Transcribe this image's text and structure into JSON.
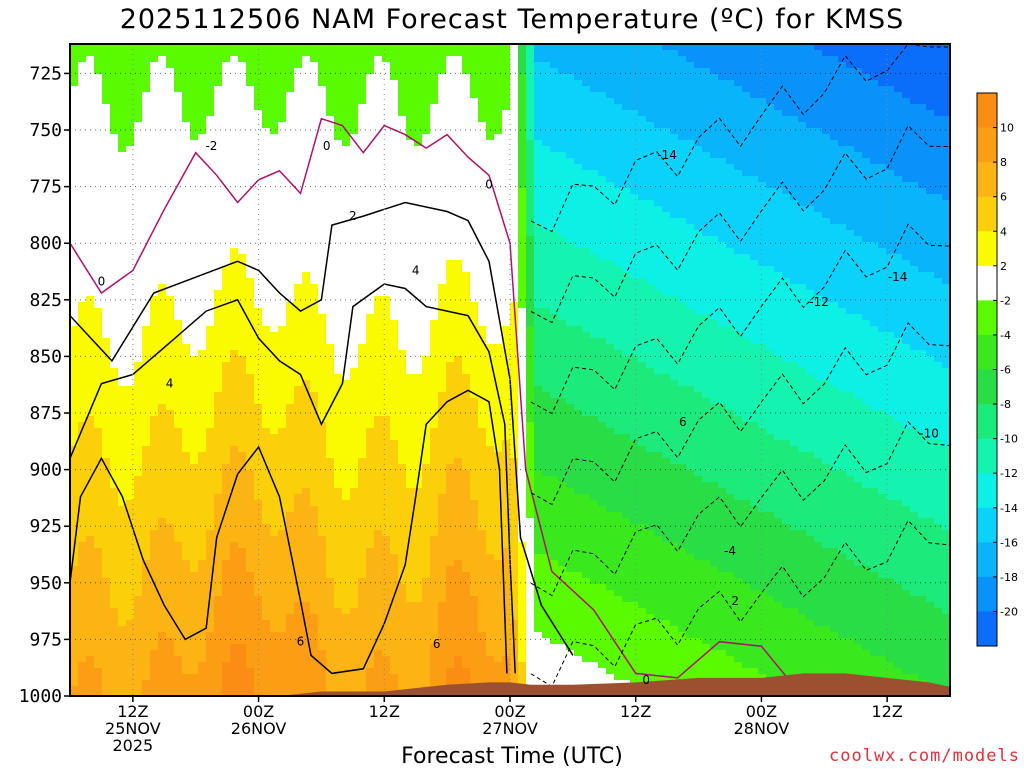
{
  "title": "2025112506 NAM Forecast Temperature (ºC) for KMSS",
  "credit": "coolwx.com/models",
  "chart_data": {
    "type": "heatmap",
    "title": "2025112506 NAM Forecast Temperature (ºC) for KMSS",
    "xlabel": "Forecast Time (UTC)",
    "ylabel": "",
    "y_axis": {
      "ticks": [
        725,
        750,
        775,
        800,
        825,
        850,
        875,
        900,
        925,
        950,
        975,
        1000
      ],
      "range": [
        1000,
        712
      ],
      "unit": "hPa"
    },
    "x_axis": {
      "range_hours": [
        0,
        84
      ],
      "ticks": [
        {
          "hour": 6,
          "lines": [
            "12Z",
            "25NOV",
            "2025"
          ]
        },
        {
          "hour": 18,
          "lines": [
            "00Z",
            "26NOV"
          ]
        },
        {
          "hour": 30,
          "lines": [
            "12Z"
          ]
        },
        {
          "hour": 42,
          "lines": [
            "00Z",
            "27NOV"
          ]
        },
        {
          "hour": 54,
          "lines": [
            "12Z"
          ]
        },
        {
          "hour": 66,
          "lines": [
            "00Z",
            "28NOV"
          ]
        },
        {
          "hour": 78,
          "lines": [
            "12Z"
          ]
        }
      ]
    },
    "grid": true,
    "colorbar": {
      "unit": "ºC",
      "levels": [
        -22,
        -20,
        -18,
        -16,
        -14,
        -12,
        -10,
        -8,
        -6,
        -4,
        -2,
        2,
        4,
        6,
        8,
        10,
        12
      ],
      "labels": [
        10,
        8,
        6,
        4,
        2,
        -2,
        -4,
        -6,
        -8,
        -10,
        -12,
        -14,
        -16,
        -18,
        -20
      ],
      "colors": [
        {
          "range": [
            10,
            12
          ],
          "color": "#fb8c14"
        },
        {
          "range": [
            8,
            10
          ],
          "color": "#fb9e14"
        },
        {
          "range": [
            6,
            8
          ],
          "color": "#fbb414"
        },
        {
          "range": [
            4,
            6
          ],
          "color": "#fbd00a"
        },
        {
          "range": [
            2,
            4
          ],
          "color": "#fbfb00"
        },
        {
          "range": [
            -2,
            2
          ],
          "color": "#ffffff"
        },
        {
          "range": [
            -4,
            -2
          ],
          "color": "#5afb00"
        },
        {
          "range": [
            -6,
            -4
          ],
          "color": "#3ae81e"
        },
        {
          "range": [
            -8,
            -6
          ],
          "color": "#28dd46"
        },
        {
          "range": [
            -10,
            -8
          ],
          "color": "#1cea7a"
        },
        {
          "range": [
            -12,
            -10
          ],
          "color": "#14f4b0"
        },
        {
          "range": [
            -14,
            -12
          ],
          "color": "#0cf0e6"
        },
        {
          "range": [
            -16,
            -14
          ],
          "color": "#0ad2fb"
        },
        {
          "range": [
            -18,
            -16
          ],
          "color": "#0ab4fb"
        },
        {
          "range": [
            -20,
            -18
          ],
          "color": "#0a92fb"
        },
        {
          "range": [
            -22,
            -20
          ],
          "color": "#0a6efb"
        }
      ]
    },
    "contour_labels": [
      {
        "text": "-2",
        "hour": 13.5,
        "p": 757
      },
      {
        "text": "0",
        "hour": 24.5,
        "p": 757
      },
      {
        "text": "0",
        "hour": 40,
        "p": 774
      },
      {
        "text": "-14",
        "hour": 57,
        "p": 761
      },
      {
        "text": "2",
        "hour": 27,
        "p": 788
      },
      {
        "text": "0",
        "hour": 3,
        "p": 817
      },
      {
        "text": "4",
        "hour": 33,
        "p": 812
      },
      {
        "text": "-14",
        "hour": 79,
        "p": 815
      },
      {
        "text": "-12",
        "hour": 71.5,
        "p": 826
      },
      {
        "text": "4",
        "hour": 9.5,
        "p": 862
      },
      {
        "text": "6",
        "hour": 58.5,
        "p": 879
      },
      {
        "text": "-10",
        "hour": 82,
        "p": 884
      },
      {
        "text": "-4",
        "hour": 63,
        "p": 936
      },
      {
        "text": "2",
        "hour": 63.5,
        "p": 958
      },
      {
        "text": "6",
        "hour": 22,
        "p": 976
      },
      {
        "text": "6",
        "hour": 35,
        "p": 977
      },
      {
        "text": "0",
        "hour": 55,
        "p": 993
      }
    ],
    "series": [
      {
        "label": "0",
        "points": [
          [
            0,
            800
          ],
          [
            3,
            822
          ],
          [
            6,
            812
          ],
          [
            9,
            785
          ],
          [
            12,
            760
          ],
          [
            14,
            770
          ],
          [
            16,
            782
          ],
          [
            18,
            772
          ],
          [
            20,
            768
          ],
          [
            22,
            778
          ],
          [
            24,
            745
          ],
          [
            26,
            748
          ],
          [
            28,
            760
          ],
          [
            30,
            748
          ],
          [
            32,
            752
          ],
          [
            34,
            758
          ],
          [
            36,
            752
          ],
          [
            38,
            762
          ],
          [
            40,
            770
          ],
          [
            42,
            800
          ],
          [
            43.5,
            900
          ],
          [
            46,
            945
          ],
          [
            50,
            962
          ],
          [
            54,
            990
          ],
          [
            58,
            992
          ],
          [
            62,
            976
          ],
          [
            66,
            978
          ],
          [
            69,
            995
          ]
        ]
      },
      {
        "label": "2",
        "points": [
          [
            0,
            832
          ],
          [
            4,
            852
          ],
          [
            8,
            822
          ],
          [
            12,
            815
          ],
          [
            16,
            808
          ],
          [
            18,
            812
          ],
          [
            20,
            822
          ],
          [
            22,
            830
          ],
          [
            24,
            825
          ],
          [
            25,
            792
          ],
          [
            28,
            788
          ],
          [
            32,
            782
          ],
          [
            36,
            786
          ],
          [
            38,
            790
          ],
          [
            40,
            808
          ],
          [
            42,
            860
          ],
          [
            43,
            930
          ],
          [
            45,
            960
          ],
          [
            48,
            982
          ]
        ]
      },
      {
        "label": "4",
        "points": [
          [
            0,
            895
          ],
          [
            3,
            862
          ],
          [
            6,
            858
          ],
          [
            10,
            842
          ],
          [
            13,
            830
          ],
          [
            16,
            825
          ],
          [
            18,
            842
          ],
          [
            20,
            852
          ],
          [
            22,
            858
          ],
          [
            24,
            880
          ],
          [
            26,
            862
          ],
          [
            27,
            828
          ],
          [
            30,
            818
          ],
          [
            32,
            820
          ],
          [
            34,
            828
          ],
          [
            36,
            830
          ],
          [
            38,
            832
          ],
          [
            40,
            848
          ],
          [
            41.5,
            880
          ],
          [
            42,
            940
          ],
          [
            42.5,
            990
          ]
        ]
      },
      {
        "label": "6",
        "points": [
          [
            0,
            950
          ],
          [
            1,
            912
          ],
          [
            3,
            895
          ],
          [
            5,
            912
          ],
          [
            7,
            940
          ],
          [
            9,
            960
          ],
          [
            11,
            975
          ],
          [
            13,
            970
          ],
          [
            14,
            930
          ],
          [
            16,
            902
          ],
          [
            18,
            890
          ],
          [
            20,
            912
          ],
          [
            22,
            958
          ],
          [
            23,
            982
          ],
          [
            25,
            990
          ],
          [
            28,
            988
          ],
          [
            30,
            968
          ],
          [
            32,
            942
          ],
          [
            33,
            912
          ],
          [
            34,
            880
          ],
          [
            36,
            870
          ],
          [
            38,
            865
          ],
          [
            40,
            870
          ],
          [
            41,
            900
          ],
          [
            41.7,
            990
          ]
        ]
      }
    ],
    "terrain": {
      "color": "#9b5030",
      "surface": [
        [
          0,
          1005
        ],
        [
          6,
          1005
        ],
        [
          12,
          1002
        ],
        [
          18,
          1001
        ],
        [
          24,
          998
        ],
        [
          30,
          998
        ],
        [
          36,
          995
        ],
        [
          40,
          994
        ],
        [
          42,
          994
        ],
        [
          44,
          995
        ],
        [
          48,
          995
        ],
        [
          54,
          994
        ],
        [
          60,
          992
        ],
        [
          66,
          992
        ],
        [
          70,
          990
        ],
        [
          74,
          990
        ],
        [
          78,
          992
        ],
        [
          82,
          994
        ],
        [
          84,
          996
        ]
      ]
    }
  }
}
